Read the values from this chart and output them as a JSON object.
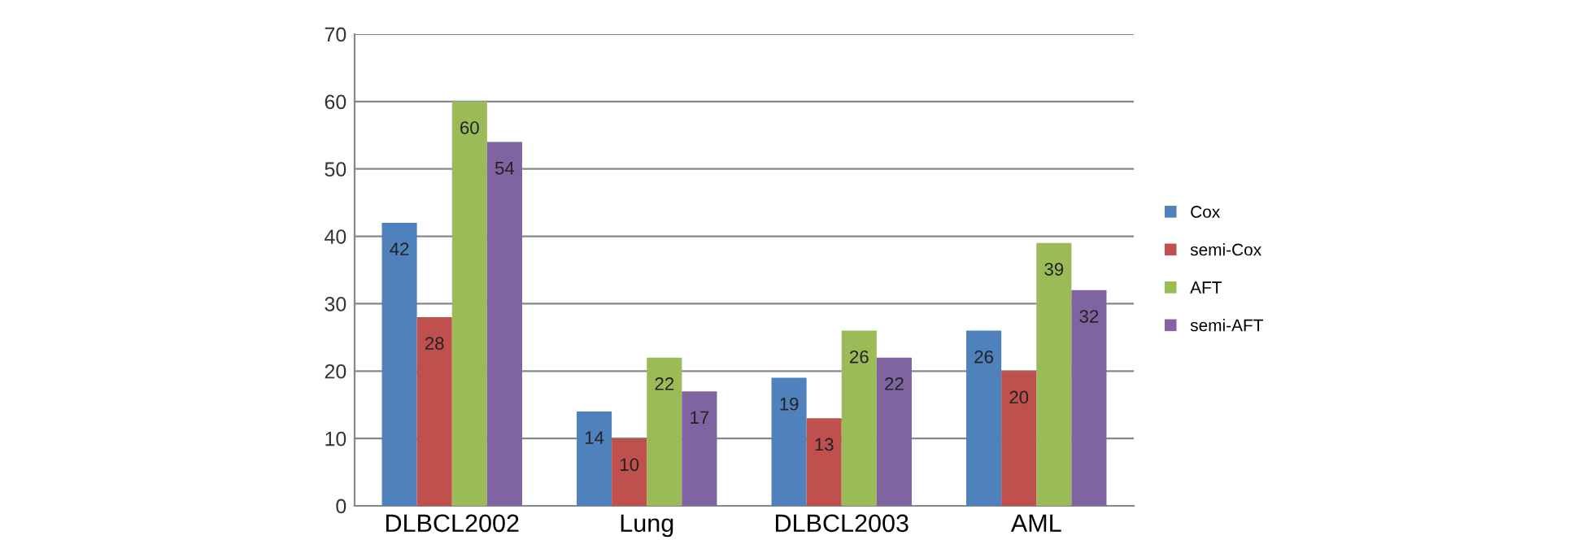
{
  "chart_data": {
    "type": "bar",
    "categories": [
      "DLBCL2002",
      "Lung",
      "DLBCL2003",
      "AML"
    ],
    "series": [
      {
        "name": "Cox",
        "color": "#4f81bd",
        "values": [
          42,
          14,
          19,
          26
        ]
      },
      {
        "name": "semi-Cox",
        "color": "#c0504d",
        "values": [
          28,
          10,
          13,
          20
        ]
      },
      {
        "name": "AFT",
        "color": "#9bbb59",
        "values": [
          60,
          22,
          26,
          39
        ]
      },
      {
        "name": "semi-AFT",
        "color": "#8064a2",
        "values": [
          54,
          17,
          22,
          32
        ]
      }
    ],
    "ylim": [
      0,
      70
    ],
    "yticks": [
      0,
      10,
      20,
      30,
      40,
      50,
      60,
      70
    ],
    "grid": "y",
    "legend": "right",
    "data_labels": true
  }
}
